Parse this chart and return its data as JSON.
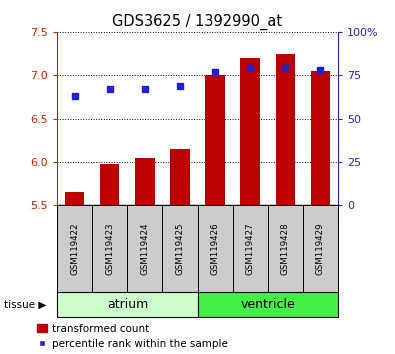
{
  "title": "GDS3625 / 1392990_at",
  "samples": [
    "GSM119422",
    "GSM119423",
    "GSM119424",
    "GSM119425",
    "GSM119426",
    "GSM119427",
    "GSM119428",
    "GSM119429"
  ],
  "transformed_count": [
    5.65,
    5.98,
    6.04,
    6.15,
    7.0,
    7.2,
    7.25,
    7.05
  ],
  "percentile_rank": [
    63,
    67,
    67,
    69,
    77,
    79,
    79,
    78
  ],
  "bar_bottom": 5.5,
  "ylim_left": [
    5.5,
    7.5
  ],
  "ylim_right": [
    0,
    100
  ],
  "yticks_left": [
    5.5,
    6.0,
    6.5,
    7.0,
    7.5
  ],
  "yticks_right": [
    0,
    25,
    50,
    75,
    100
  ],
  "ytick_labels_right": [
    "0",
    "25",
    "50",
    "75",
    "100%"
  ],
  "bar_color": "#bb0000",
  "dot_color": "#2222cc",
  "atrium_color": "#ccffcc",
  "ventricle_color": "#44ee44",
  "tissue_label": "tissue",
  "atrium_label": "atrium",
  "ventricle_label": "ventricle",
  "legend_bar_label": "transformed count",
  "legend_dot_label": "percentile rank within the sample",
  "ylabel_left_color": "#cc2200",
  "ylabel_right_color": "#2222cc",
  "sample_bg_color": "#cccccc"
}
